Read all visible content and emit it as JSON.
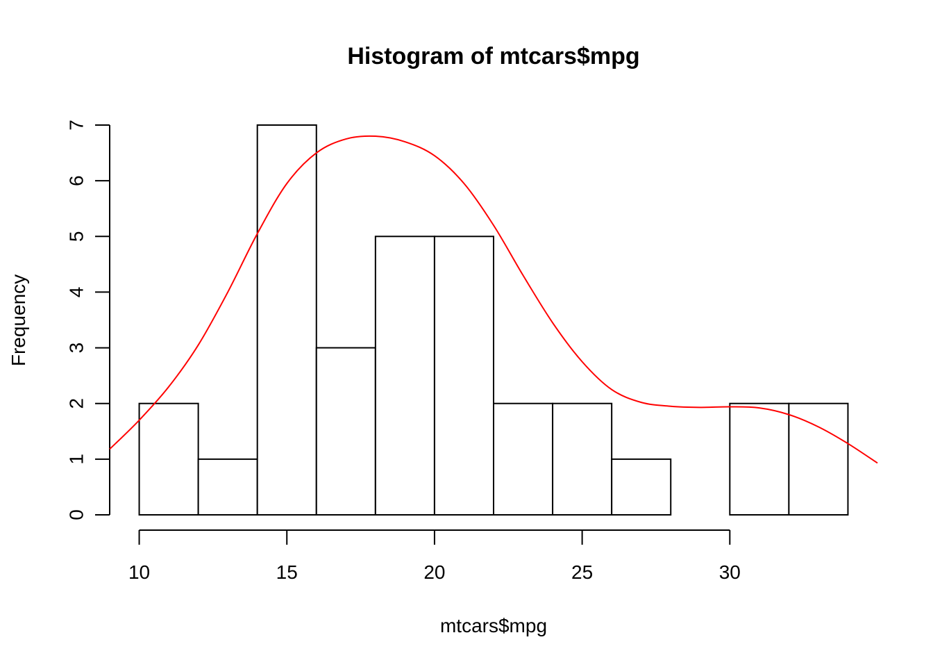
{
  "chart_data": {
    "type": "bar",
    "title": "Histogram of mtcars$mpg",
    "xlabel": "mtcars$mpg",
    "ylabel": "Frequency",
    "bins": [
      {
        "start": 10,
        "end": 12,
        "count": 2
      },
      {
        "start": 12,
        "end": 14,
        "count": 1
      },
      {
        "start": 14,
        "end": 16,
        "count": 7
      },
      {
        "start": 16,
        "end": 18,
        "count": 3
      },
      {
        "start": 18,
        "end": 20,
        "count": 5
      },
      {
        "start": 20,
        "end": 22,
        "count": 5
      },
      {
        "start": 22,
        "end": 24,
        "count": 2
      },
      {
        "start": 24,
        "end": 26,
        "count": 2
      },
      {
        "start": 26,
        "end": 28,
        "count": 1
      },
      {
        "start": 28,
        "end": 30,
        "count": 0
      },
      {
        "start": 30,
        "end": 32,
        "count": 2
      },
      {
        "start": 32,
        "end": 34,
        "count": 2
      }
    ],
    "xlim": [
      9,
      35
    ],
    "ylim": [
      0,
      7
    ],
    "x_ticks": [
      10,
      15,
      20,
      25,
      30
    ],
    "y_ticks": [
      0,
      1,
      2,
      3,
      4,
      5,
      6,
      7
    ],
    "grid": false,
    "bar_fill": "#ffffff",
    "bar_stroke": "#000000",
    "density_curve": {
      "color": "#ff0000",
      "x": [
        9,
        10,
        11,
        12,
        13,
        14,
        15,
        16,
        17,
        18,
        19,
        20,
        21,
        22,
        23,
        24,
        25,
        26,
        27,
        28,
        29,
        30,
        31,
        32,
        33,
        34,
        35
      ],
      "y": [
        1.18,
        1.7,
        2.3,
        3.05,
        4.0,
        5.05,
        5.95,
        6.5,
        6.75,
        6.8,
        6.7,
        6.45,
        5.95,
        5.2,
        4.3,
        3.45,
        2.75,
        2.25,
        2.02,
        1.95,
        1.93,
        1.94,
        1.92,
        1.8,
        1.58,
        1.28,
        0.93
      ]
    }
  }
}
